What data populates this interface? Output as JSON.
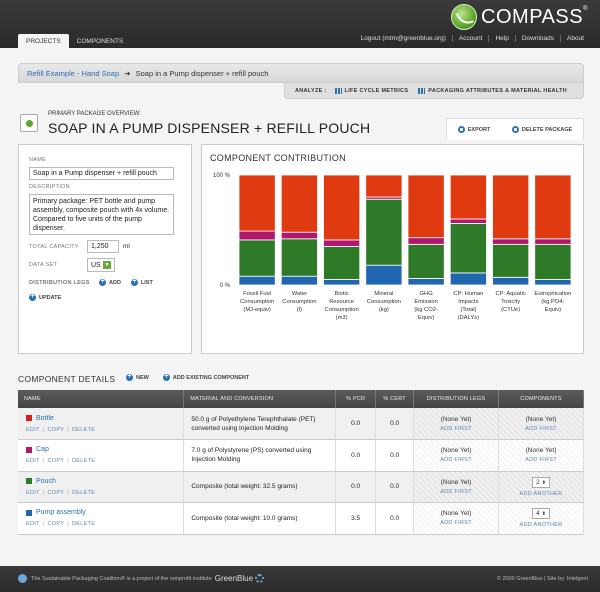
{
  "header": {
    "logo_text": "COMPASS",
    "logo_mark": "®",
    "tabs": [
      {
        "label": "PROJECTS"
      },
      {
        "label": "COMPONENTS"
      }
    ],
    "links": [
      "Logout (mtm@greenblue.org)",
      "Account",
      "Help",
      "Downloads",
      "About"
    ]
  },
  "breadcrumb": {
    "parent": "Refill Example - Hand Soap",
    "arrow": "➔",
    "current": "Soap in a Pump dispenser + refill pouch"
  },
  "analyze": {
    "label": "ANALYZE :",
    "items": [
      "LIFE CYCLE METRICS",
      "PACKAGING ATTRIBUTES & MATERIAL HEALTH"
    ]
  },
  "package": {
    "overview_label": "PRIMARY PACKAGE OVERVIEW:",
    "title": "SOAP IN A PUMP DISPENSER + REFILL POUCH",
    "export_label": "EXPORT",
    "delete_label": "DELETE PACKAGE"
  },
  "form": {
    "name_label": "NAME",
    "name_value": "Soap in a Pump dispenser + refill pouch",
    "description_label": "DESCRIPTION",
    "description_value": "Primary package: PET bottle and pump assembly, composite pouch with 4x volume. Compared to five units of the pump dispenser.",
    "capacity_label": "TOTAL CAPACITY",
    "capacity_value": "1,250",
    "capacity_unit": "ml",
    "dataset_label": "DATA SET",
    "dataset_value": "US",
    "legs_label": "DISTRIBUTION LEGS",
    "legs_add": "ADD",
    "legs_list": "LIST",
    "update_label": "UPDATE"
  },
  "chart_data": {
    "type": "bar",
    "stacked": true,
    "title": "COMPONENT CONTRIBUTION",
    "y_tick_labels": [
      "100 %",
      "0 %"
    ],
    "ylim": [
      0,
      100
    ],
    "categories": [
      [
        "Fossil Fuel",
        "Consumption",
        "(MJ-equiv)"
      ],
      [
        "Water",
        "Consumption",
        "(l)"
      ],
      [
        "Biotic",
        "Resource",
        "Consumption",
        "(m3)"
      ],
      [
        "Mineral",
        "Consumption",
        "(kg)"
      ],
      [
        "GHG",
        "Emission",
        "(kg CO2-",
        "Equiv)"
      ],
      [
        "CP: Human",
        "Impacts",
        "(Total)",
        "(DALYs)"
      ],
      [
        "CP: Aquatic",
        "Toxicity",
        "(CTUe)"
      ],
      [
        "Eutrophication",
        "(kg PO4-",
        "Equiv)"
      ]
    ],
    "series": [
      {
        "component": "Pump assembly",
        "color": "#2266b0",
        "values": [
          8,
          8,
          5,
          18,
          6,
          11,
          7,
          5
        ]
      },
      {
        "component": "Pouch",
        "color": "#2f7a28",
        "values": [
          33,
          34,
          30,
          60,
          31,
          45,
          30,
          32
        ]
      },
      {
        "component": "Cap",
        "color": "#b0176e",
        "values": [
          8,
          6,
          6,
          2,
          6,
          4,
          5,
          5
        ]
      },
      {
        "component": "Bottle",
        "color": "#e03a10",
        "values": [
          51,
          52,
          59,
          20,
          57,
          40,
          58,
          58
        ]
      }
    ]
  },
  "details": {
    "title": "COMPONENT DETAILS",
    "new_label": "NEW",
    "add_existing_label": "ADD EXISTING COMPONENT",
    "columns": [
      "NAME",
      "MATERIAL AND CONVERSION",
      "% PCR",
      "% CERT",
      "DISTRIBUTION LEGS",
      "COMPONENTS"
    ],
    "edit": "EDIT",
    "copy": "COPY",
    "delete": "DELETE",
    "none_yet": "(None Yet)",
    "add_first": "ADD FIRST",
    "add_another": "ADD ANOTHER",
    "rows": [
      {
        "name": "Bottle",
        "color": "#d81e1e",
        "material": "50.0 g of Polyethylene Terephthalate (PET) converted using Injection Molding",
        "pcr": "0.0",
        "cert": "0.0",
        "components_count": null
      },
      {
        "name": "Cap",
        "color": "#b0176e",
        "material": "7.0 g of Polystyrene (PS) converted using Injection Molding",
        "pcr": "0.0",
        "cert": "0.0",
        "components_count": null
      },
      {
        "name": "Pouch",
        "color": "#2f7a28",
        "material": "Composite (total weight: 32.5 grams)",
        "pcr": "0.0",
        "cert": "0.0",
        "components_count": "2"
      },
      {
        "name": "Pump assembly",
        "color": "#2266b0",
        "material": "Composite (total weight: 10.0 grams)",
        "pcr": "3.5",
        "cert": "0.0",
        "components_count": "4"
      }
    ]
  },
  "footer": {
    "left_text": "The Sustainable Packaging Coalition® is a project of the nonprofit institute",
    "org": "GreenBlue",
    "right_text": "© 2000 GreenBlue | Site by: Intelgent"
  }
}
